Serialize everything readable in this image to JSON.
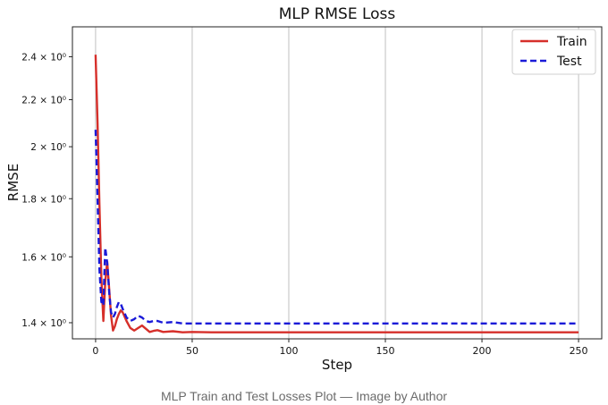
{
  "caption": "MLP Train and Test Losses Plot — Image by Author",
  "chart_data": {
    "type": "line",
    "title": "MLP RMSE Loss",
    "xlabel": "Step",
    "ylabel": "RMSE",
    "y_scale": "log",
    "grid": "vertical",
    "legend_position": "top-right",
    "xlim": [
      -12,
      262
    ],
    "ylim": [
      1.355,
      2.55
    ],
    "xticks": [
      0,
      50,
      100,
      150,
      200,
      250
    ],
    "yticks": [
      {
        "value": 1.4,
        "label": "1.4 × 10⁰"
      },
      {
        "value": 1.6,
        "label": "1.6 × 10⁰"
      },
      {
        "value": 1.8,
        "label": "1.8 × 10⁰"
      },
      {
        "value": 2.0,
        "label": "2 × 10⁰"
      },
      {
        "value": 2.2,
        "label": "2.2 × 10⁰"
      },
      {
        "value": 2.4,
        "label": "2.4 × 10⁰"
      }
    ],
    "series": [
      {
        "name": "Train",
        "color": "#d62f2a",
        "style": "solid",
        "x": [
          0,
          1,
          2,
          3,
          4,
          5,
          6,
          7,
          8,
          9,
          10,
          11,
          12,
          13,
          14,
          16,
          18,
          20,
          22,
          24,
          26,
          28,
          30,
          32,
          35,
          40,
          45,
          50,
          60,
          80,
          100,
          150,
          200,
          250
        ],
        "y": [
          2.41,
          2.1,
          1.78,
          1.53,
          1.405,
          1.52,
          1.585,
          1.5,
          1.42,
          1.378,
          1.39,
          1.41,
          1.425,
          1.435,
          1.43,
          1.405,
          1.385,
          1.378,
          1.385,
          1.392,
          1.383,
          1.374,
          1.377,
          1.379,
          1.374,
          1.376,
          1.373,
          1.374,
          1.373,
          1.373,
          1.373,
          1.373,
          1.373,
          1.373
        ]
      },
      {
        "name": "Test",
        "color": "#1a1ad8",
        "style": "dashed",
        "x": [
          0,
          1,
          2,
          3,
          4,
          5,
          6,
          7,
          8,
          9,
          10,
          11,
          12,
          13,
          14,
          16,
          18,
          20,
          22,
          24,
          26,
          28,
          30,
          32,
          35,
          40,
          45,
          50,
          60,
          80,
          100,
          150,
          200,
          250
        ],
        "y": [
          2.07,
          1.8,
          1.56,
          1.46,
          1.45,
          1.63,
          1.58,
          1.49,
          1.43,
          1.415,
          1.425,
          1.445,
          1.46,
          1.455,
          1.44,
          1.415,
          1.405,
          1.41,
          1.42,
          1.415,
          1.405,
          1.402,
          1.405,
          1.405,
          1.4,
          1.402,
          1.398,
          1.398,
          1.398,
          1.398,
          1.398,
          1.398,
          1.398,
          1.398
        ]
      }
    ]
  }
}
